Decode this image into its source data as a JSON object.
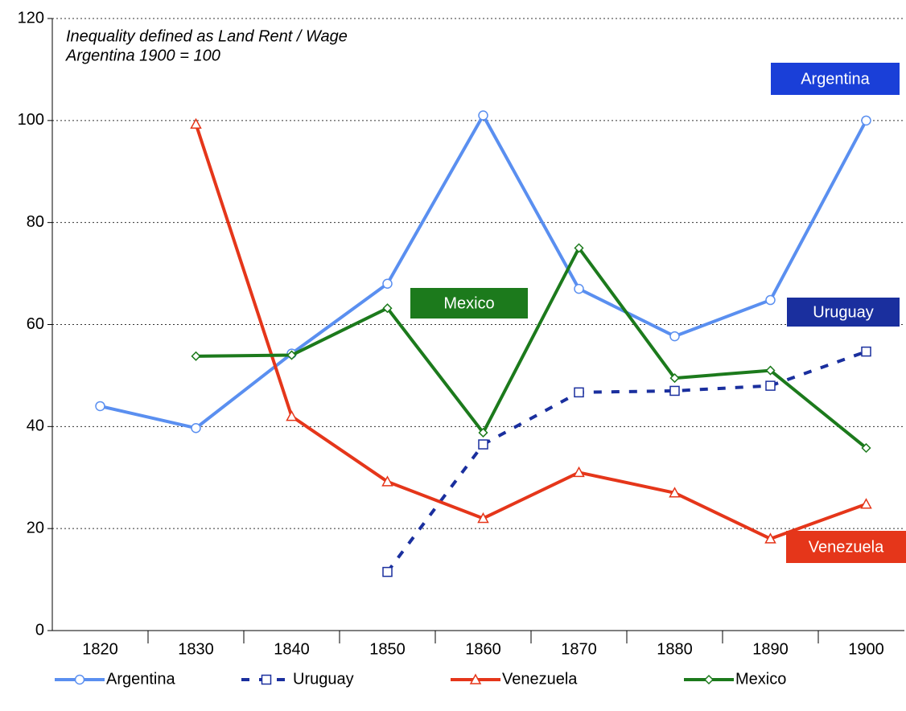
{
  "chart_data": {
    "type": "line",
    "notes": [
      "Inequality defined as Land Rent / Wage",
      "Argentina 1900 = 100"
    ],
    "categories": [
      "1820",
      "1830",
      "1840",
      "1850",
      "1860",
      "1870",
      "1880",
      "1890",
      "1900"
    ],
    "series": [
      {
        "name": "Argentina",
        "color": "#5a8ff0",
        "marker": "circle",
        "dashed": false,
        "values": [
          44,
          39.7,
          54.3,
          68,
          101,
          67,
          57.7,
          64.8,
          100
        ]
      },
      {
        "name": "Uruguay",
        "color": "#1a2f9e",
        "marker": "square",
        "dashed": true,
        "values": [
          null,
          null,
          null,
          11.5,
          36.5,
          46.7,
          47,
          48,
          54.7
        ]
      },
      {
        "name": "Venezuela",
        "color": "#e5361a",
        "marker": "triangle",
        "dashed": false,
        "values": [
          null,
          99.3,
          42,
          29.2,
          22,
          31,
          27,
          18,
          24.8
        ]
      },
      {
        "name": "Mexico",
        "color": "#1c7a1c",
        "marker": "diamond",
        "dashed": false,
        "values": [
          null,
          53.8,
          54,
          63.2,
          38.8,
          75,
          49.5,
          51,
          35.8
        ]
      }
    ],
    "annotations": [
      {
        "text": "Argentina",
        "color": "#1a3fd8"
      },
      {
        "text": "Mexico",
        "color": "#1c7a1c"
      },
      {
        "text": "Uruguay",
        "color": "#1a2f9e"
      },
      {
        "text": "Venezuela",
        "color": "#e5361a"
      }
    ],
    "ylim": [
      0,
      120
    ],
    "yticks": [
      0,
      20,
      40,
      60,
      80,
      100,
      120
    ],
    "grid": true
  }
}
